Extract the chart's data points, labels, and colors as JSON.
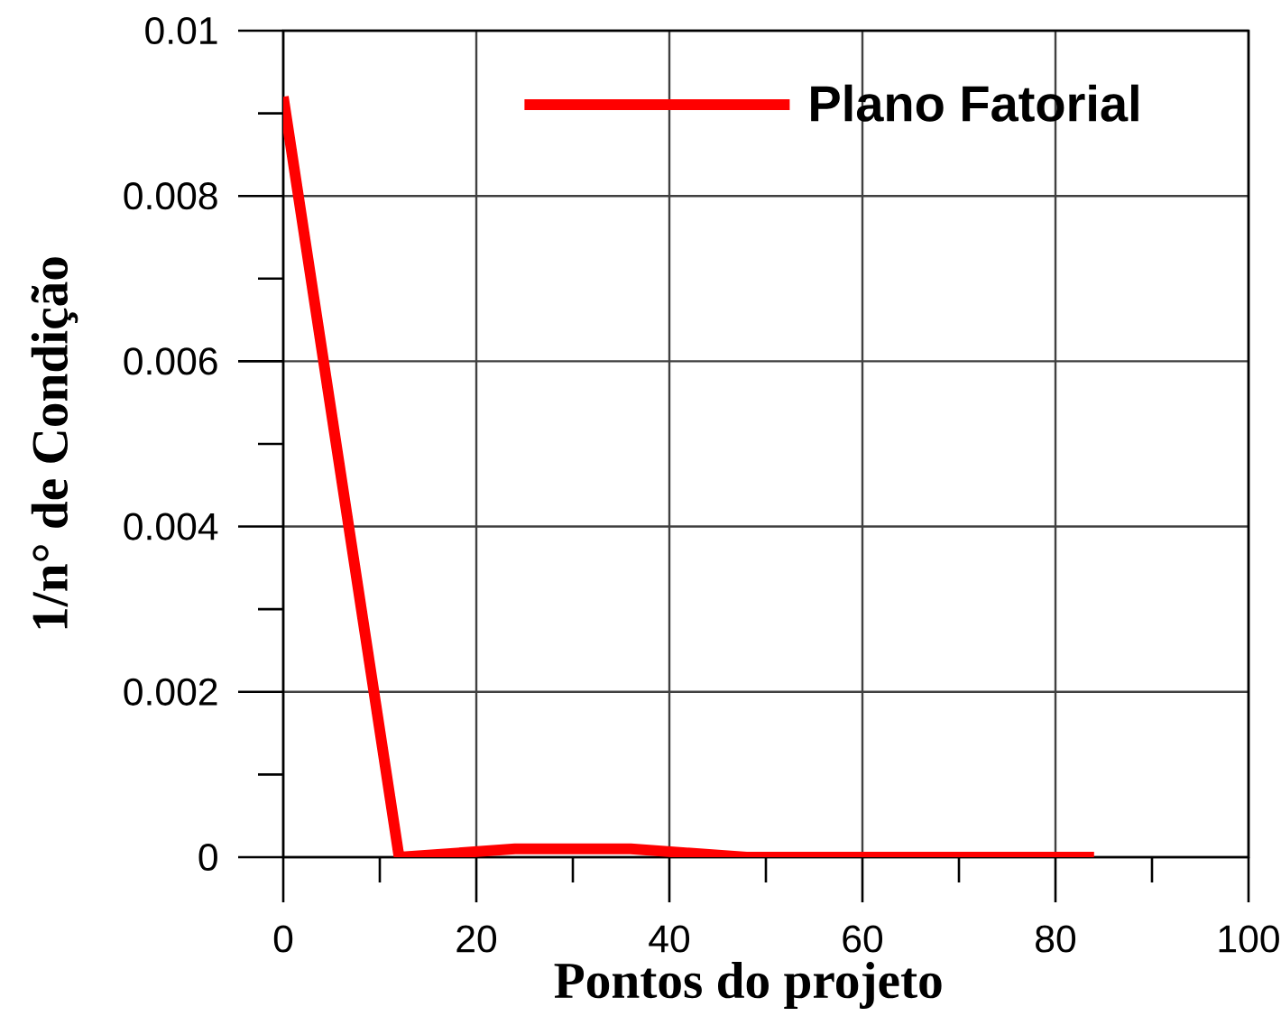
{
  "chart_data": {
    "type": "line",
    "xlabel": "Pontos do projeto",
    "ylabel": "1/n° de Condição",
    "x": [
      0,
      12,
      24,
      36,
      48,
      60,
      72,
      84
    ],
    "series": [
      {
        "name": "Plano Fatorial",
        "color": "#ff0000",
        "values": [
          0.0092,
          0,
          0.0001,
          0.0001,
          0,
          0,
          0,
          0
        ]
      }
    ],
    "xlim": [
      0,
      100
    ],
    "ylim": [
      0,
      0.01
    ],
    "xticks": [
      0,
      {
        "value": 10,
        "label": null
      },
      20,
      {
        "value": 30,
        "label": null
      },
      40,
      {
        "value": 50,
        "label": null
      },
      60,
      {
        "value": 70,
        "label": null
      },
      80,
      {
        "value": 90,
        "label": null
      },
      100
    ],
    "yticks": [
      0,
      {
        "value": 0.001,
        "label": null
      },
      0.002,
      {
        "value": 0.003,
        "label": null
      },
      0.004,
      {
        "value": 0.005,
        "label": null
      },
      0.006,
      {
        "value": 0.007,
        "label": null
      },
      0.008,
      {
        "value": 0.009,
        "label": null
      },
      0.01
    ],
    "grid": true,
    "legend": "top right",
    "line_style": "solid"
  }
}
